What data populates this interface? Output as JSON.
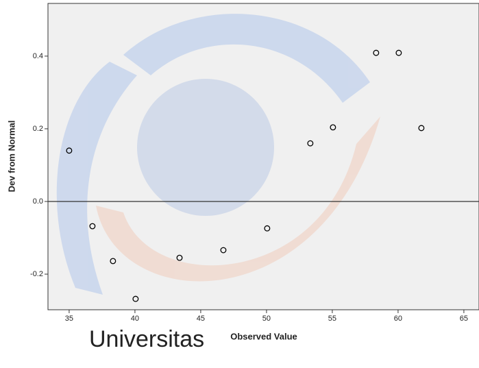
{
  "chart_data": {
    "type": "scatter",
    "x_label": "Observed Value",
    "y_label": "Dev from Normal",
    "watermark": "Universitas",
    "x": [
      35,
      36.77,
      38.33,
      40.05,
      43.39,
      46.72,
      50.05,
      53.33,
      55.05,
      58.33,
      60.05,
      61.77
    ],
    "values": [
      0.14,
      -0.068,
      -0.164,
      -0.268,
      -0.155,
      -0.134,
      -0.074,
      0.16,
      0.204,
      0.409,
      0.409,
      0.202
    ],
    "color": "#000000",
    "reference_line": 0,
    "xlim": [
      33.39,
      66.15
    ],
    "ylim": [
      -0.298,
      0.545
    ],
    "xticks": [
      35,
      40,
      45,
      50,
      55,
      60,
      65
    ],
    "yticks": [
      {
        "value": -0.2,
        "label": "-0.2"
      },
      {
        "value": 0,
        "label": "0.0"
      },
      {
        "value": 0.2,
        "label": "0.2"
      },
      {
        "value": 0.4,
        "label": "0.4"
      }
    ]
  }
}
